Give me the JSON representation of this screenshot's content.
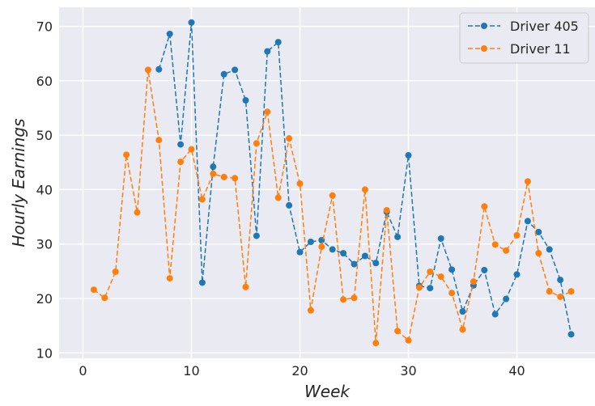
{
  "chart_data": {
    "type": "line",
    "title": "",
    "xlabel": "Week",
    "ylabel": "Hourly Earnings",
    "xlim": [
      -2.2,
      47.2
    ],
    "ylim": [
      9.0,
      73.5
    ],
    "xticks": [
      0,
      10,
      20,
      30,
      40
    ],
    "yticks": [
      10,
      20,
      30,
      40,
      50,
      60,
      70
    ],
    "grid": true,
    "legend_position": "top-right",
    "line_style": "dashed",
    "marker": "circle",
    "series": [
      {
        "name": "Driver 405",
        "color": "#1f77b4",
        "x": [
          7,
          8,
          9,
          10,
          11,
          12,
          13,
          14,
          15,
          16,
          17,
          18,
          19,
          20,
          21,
          22,
          23,
          24,
          25,
          26,
          27,
          28,
          29,
          30,
          31,
          32,
          33,
          34,
          35,
          36,
          37,
          38,
          39,
          40,
          41,
          42,
          43,
          44,
          45
        ],
        "y": [
          62.1,
          68.6,
          48.3,
          70.7,
          22.9,
          44.2,
          61.2,
          62.0,
          56.4,
          31.5,
          65.4,
          67.1,
          37.1,
          28.5,
          30.4,
          30.7,
          29.0,
          28.3,
          26.3,
          27.8,
          26.5,
          35.9,
          31.3,
          46.3,
          22.3,
          21.9,
          31.0,
          25.3,
          17.6,
          22.4,
          25.2,
          17.1,
          19.9,
          24.4,
          34.2,
          32.2,
          29.0,
          23.4,
          13.4
        ]
      },
      {
        "name": "Driver 11",
        "color": "#ff7f0e",
        "x": [
          1,
          2,
          3,
          4,
          5,
          6,
          7,
          8,
          9,
          10,
          11,
          12,
          13,
          14,
          15,
          16,
          17,
          18,
          19,
          20,
          21,
          22,
          23,
          24,
          25,
          26,
          27,
          28,
          29,
          30,
          31,
          32,
          33,
          34,
          35,
          36,
          37,
          38,
          39,
          40,
          41,
          42,
          43,
          44,
          45
        ],
        "y": [
          21.6,
          20.1,
          24.9,
          46.4,
          35.8,
          62.0,
          49.1,
          23.7,
          45.1,
          47.4,
          38.2,
          42.9,
          42.3,
          42.1,
          22.1,
          48.5,
          54.3,
          38.5,
          49.4,
          41.1,
          17.8,
          29.5,
          38.9,
          19.8,
          20.1,
          40.0,
          11.8,
          36.2,
          14.0,
          12.3,
          22.0,
          24.9,
          24.0,
          21.0,
          14.3,
          23.1,
          36.9,
          29.9,
          28.8,
          31.6,
          41.5,
          28.3,
          21.3,
          20.3,
          21.3
        ]
      }
    ]
  }
}
